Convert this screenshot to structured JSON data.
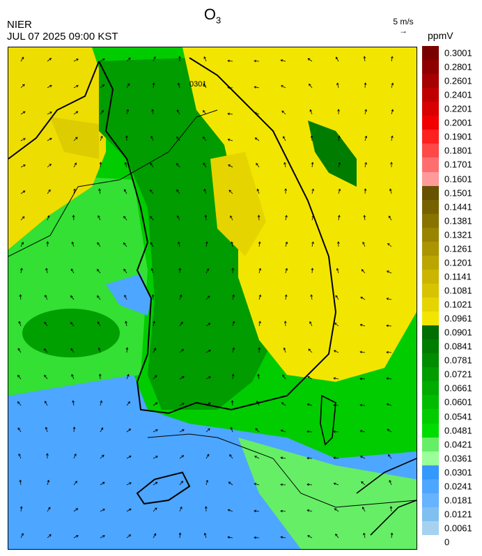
{
  "header": {
    "title_main": "O",
    "title_sub": "3",
    "organization": "NIER",
    "datetime": "JUL 07 2025 09:00 KST",
    "reference_vector_label": "5 m/s",
    "reference_vector_arrow": "→",
    "unit": "ppmV"
  },
  "legend": {
    "labels": [
      "0.3001",
      "0.2801",
      "0.2601",
      "0.2401",
      "0.2201",
      "0.2001",
      "0.1901",
      "0.1801",
      "0.1701",
      "0.1601",
      "0.1501",
      "0.1441",
      "0.1381",
      "0.1321",
      "0.1261",
      "0.1201",
      "0.1141",
      "0.1081",
      "0.1021",
      "0.0961",
      "0.0901",
      "0.0841",
      "0.0781",
      "0.0721",
      "0.0661",
      "0.0601",
      "0.0541",
      "0.0481",
      "0.0421",
      "0.0361",
      "0.0301",
      "0.0241",
      "0.0181",
      "0.0121",
      "0.0061",
      "0"
    ],
    "colors": [
      "#7a0000",
      "#8e0000",
      "#a60000",
      "#bf0000",
      "#d80000",
      "#f00000",
      "#ff2020",
      "#ff4848",
      "#ff6e6e",
      "#ff9a9a",
      "#665200",
      "#776200",
      "#887300",
      "#998400",
      "#aa9500",
      "#bba500",
      "#ccb500",
      "#d8c300",
      "#e6d400",
      "#f2e600",
      "#006e00",
      "#007d00",
      "#008c00",
      "#009c00",
      "#00ac00",
      "#00bc00",
      "#00cc00",
      "#00dc00",
      "#66ee66",
      "#99ff99",
      "#3399ff",
      "#4da6ff",
      "#66b3ff",
      "#80c0f0",
      "#a6d2f0"
    ]
  },
  "map": {
    "contour_label": "0301"
  }
}
